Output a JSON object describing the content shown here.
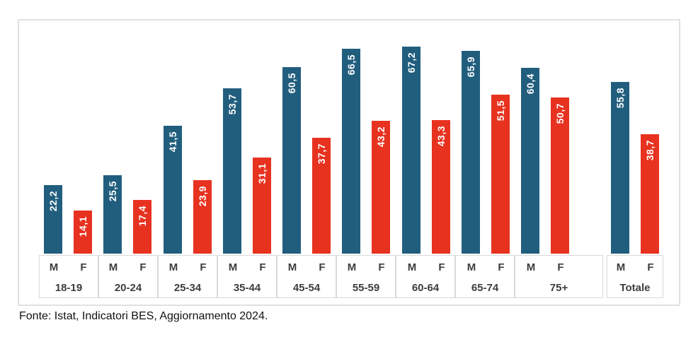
{
  "chart_data": {
    "type": "bar",
    "title": "",
    "categories": [
      "18-19",
      "20-24",
      "25-34",
      "35-44",
      "45-54",
      "55-59",
      "60-64",
      "65-74",
      "75+",
      "Totale"
    ],
    "series": [
      {
        "name": "M",
        "color": "#215e7e",
        "values": [
          22.2,
          25.5,
          41.5,
          53.7,
          60.5,
          66.5,
          67.2,
          65.9,
          60.4,
          55.8
        ]
      },
      {
        "name": "F",
        "color": "#e7321f",
        "values": [
          14.1,
          17.4,
          23.9,
          31.1,
          37.7,
          43.2,
          43.3,
          51.5,
          50.7,
          38.7
        ]
      }
    ],
    "x_axis": {
      "bar_sublabels": [
        "M",
        "F"
      ],
      "group_labels": [
        "18-19",
        "20-24",
        "25-34",
        "35-44",
        "45-54",
        "55-59",
        "60-64",
        "65-74",
        "75+",
        "Totale"
      ]
    },
    "value_labels": {
      "visible": true,
      "format": "one-decimal-italian-comma",
      "position": "inside-top-rotated-90ccw",
      "color": "#ffffff"
    },
    "xlabel": "",
    "ylabel": "",
    "ylim": [
      0,
      75
    ],
    "grid": false,
    "legend_position": "none"
  },
  "footer": {
    "source": "Fonte: Istat, Indicatori BES, Aggiornamento 2024."
  },
  "colors": {
    "male_bar": "#215e7e",
    "female_bar": "#e7321f",
    "frame_border": "#e1e1e1",
    "axis_cell_border": "#d9d9d9",
    "axis_text": "#3d3d3d",
    "value_text": "#ffffff"
  }
}
